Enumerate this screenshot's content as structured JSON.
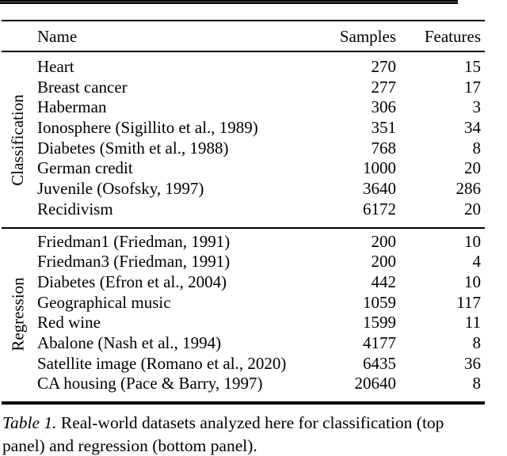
{
  "table": {
    "headers": {
      "name": "Name",
      "samples": "Samples",
      "features": "Features"
    },
    "sections": [
      {
        "label": "Classification",
        "rows": [
          {
            "name": "Heart",
            "samples": "270",
            "features": "15"
          },
          {
            "name": "Breast cancer",
            "samples": "277",
            "features": "17"
          },
          {
            "name": "Haberman",
            "samples": "306",
            "features": "3"
          },
          {
            "name": "Ionosphere (Sigillito et al., 1989)",
            "samples": "351",
            "features": "34"
          },
          {
            "name": "Diabetes (Smith et al., 1988)",
            "samples": "768",
            "features": "8"
          },
          {
            "name": "German credit",
            "samples": "1000",
            "features": "20"
          },
          {
            "name": "Juvenile (Osofsky, 1997)",
            "samples": "3640",
            "features": "286"
          },
          {
            "name": "Recidivism",
            "samples": "6172",
            "features": "20"
          }
        ]
      },
      {
        "label": "Regression",
        "rows": [
          {
            "name": "Friedman1 (Friedman, 1991)",
            "samples": "200",
            "features": "10"
          },
          {
            "name": "Friedman3 (Friedman, 1991)",
            "samples": "200",
            "features": "4"
          },
          {
            "name": "Diabetes (Efron et al., 2004)",
            "samples": "442",
            "features": "10"
          },
          {
            "name": "Geographical music",
            "samples": "1059",
            "features": "117"
          },
          {
            "name": "Red wine",
            "samples": "1599",
            "features": "11"
          },
          {
            "name": "Abalone (Nash et al., 1994)",
            "samples": "4177",
            "features": "8"
          },
          {
            "name": "Satellite image (Romano et al., 2020)",
            "samples": "6435",
            "features": "36"
          },
          {
            "name": "CA housing (Pace & Barry, 1997)",
            "samples": "20640",
            "features": "8"
          }
        ]
      }
    ]
  },
  "caption": {
    "label": "Table 1.",
    "line1": " Real-world datasets analyzed here for classification (top",
    "line2": "panel) and regression (bottom panel)."
  },
  "colors": {
    "text": "#000000",
    "background": "#ffffff",
    "rule": "#000000"
  }
}
